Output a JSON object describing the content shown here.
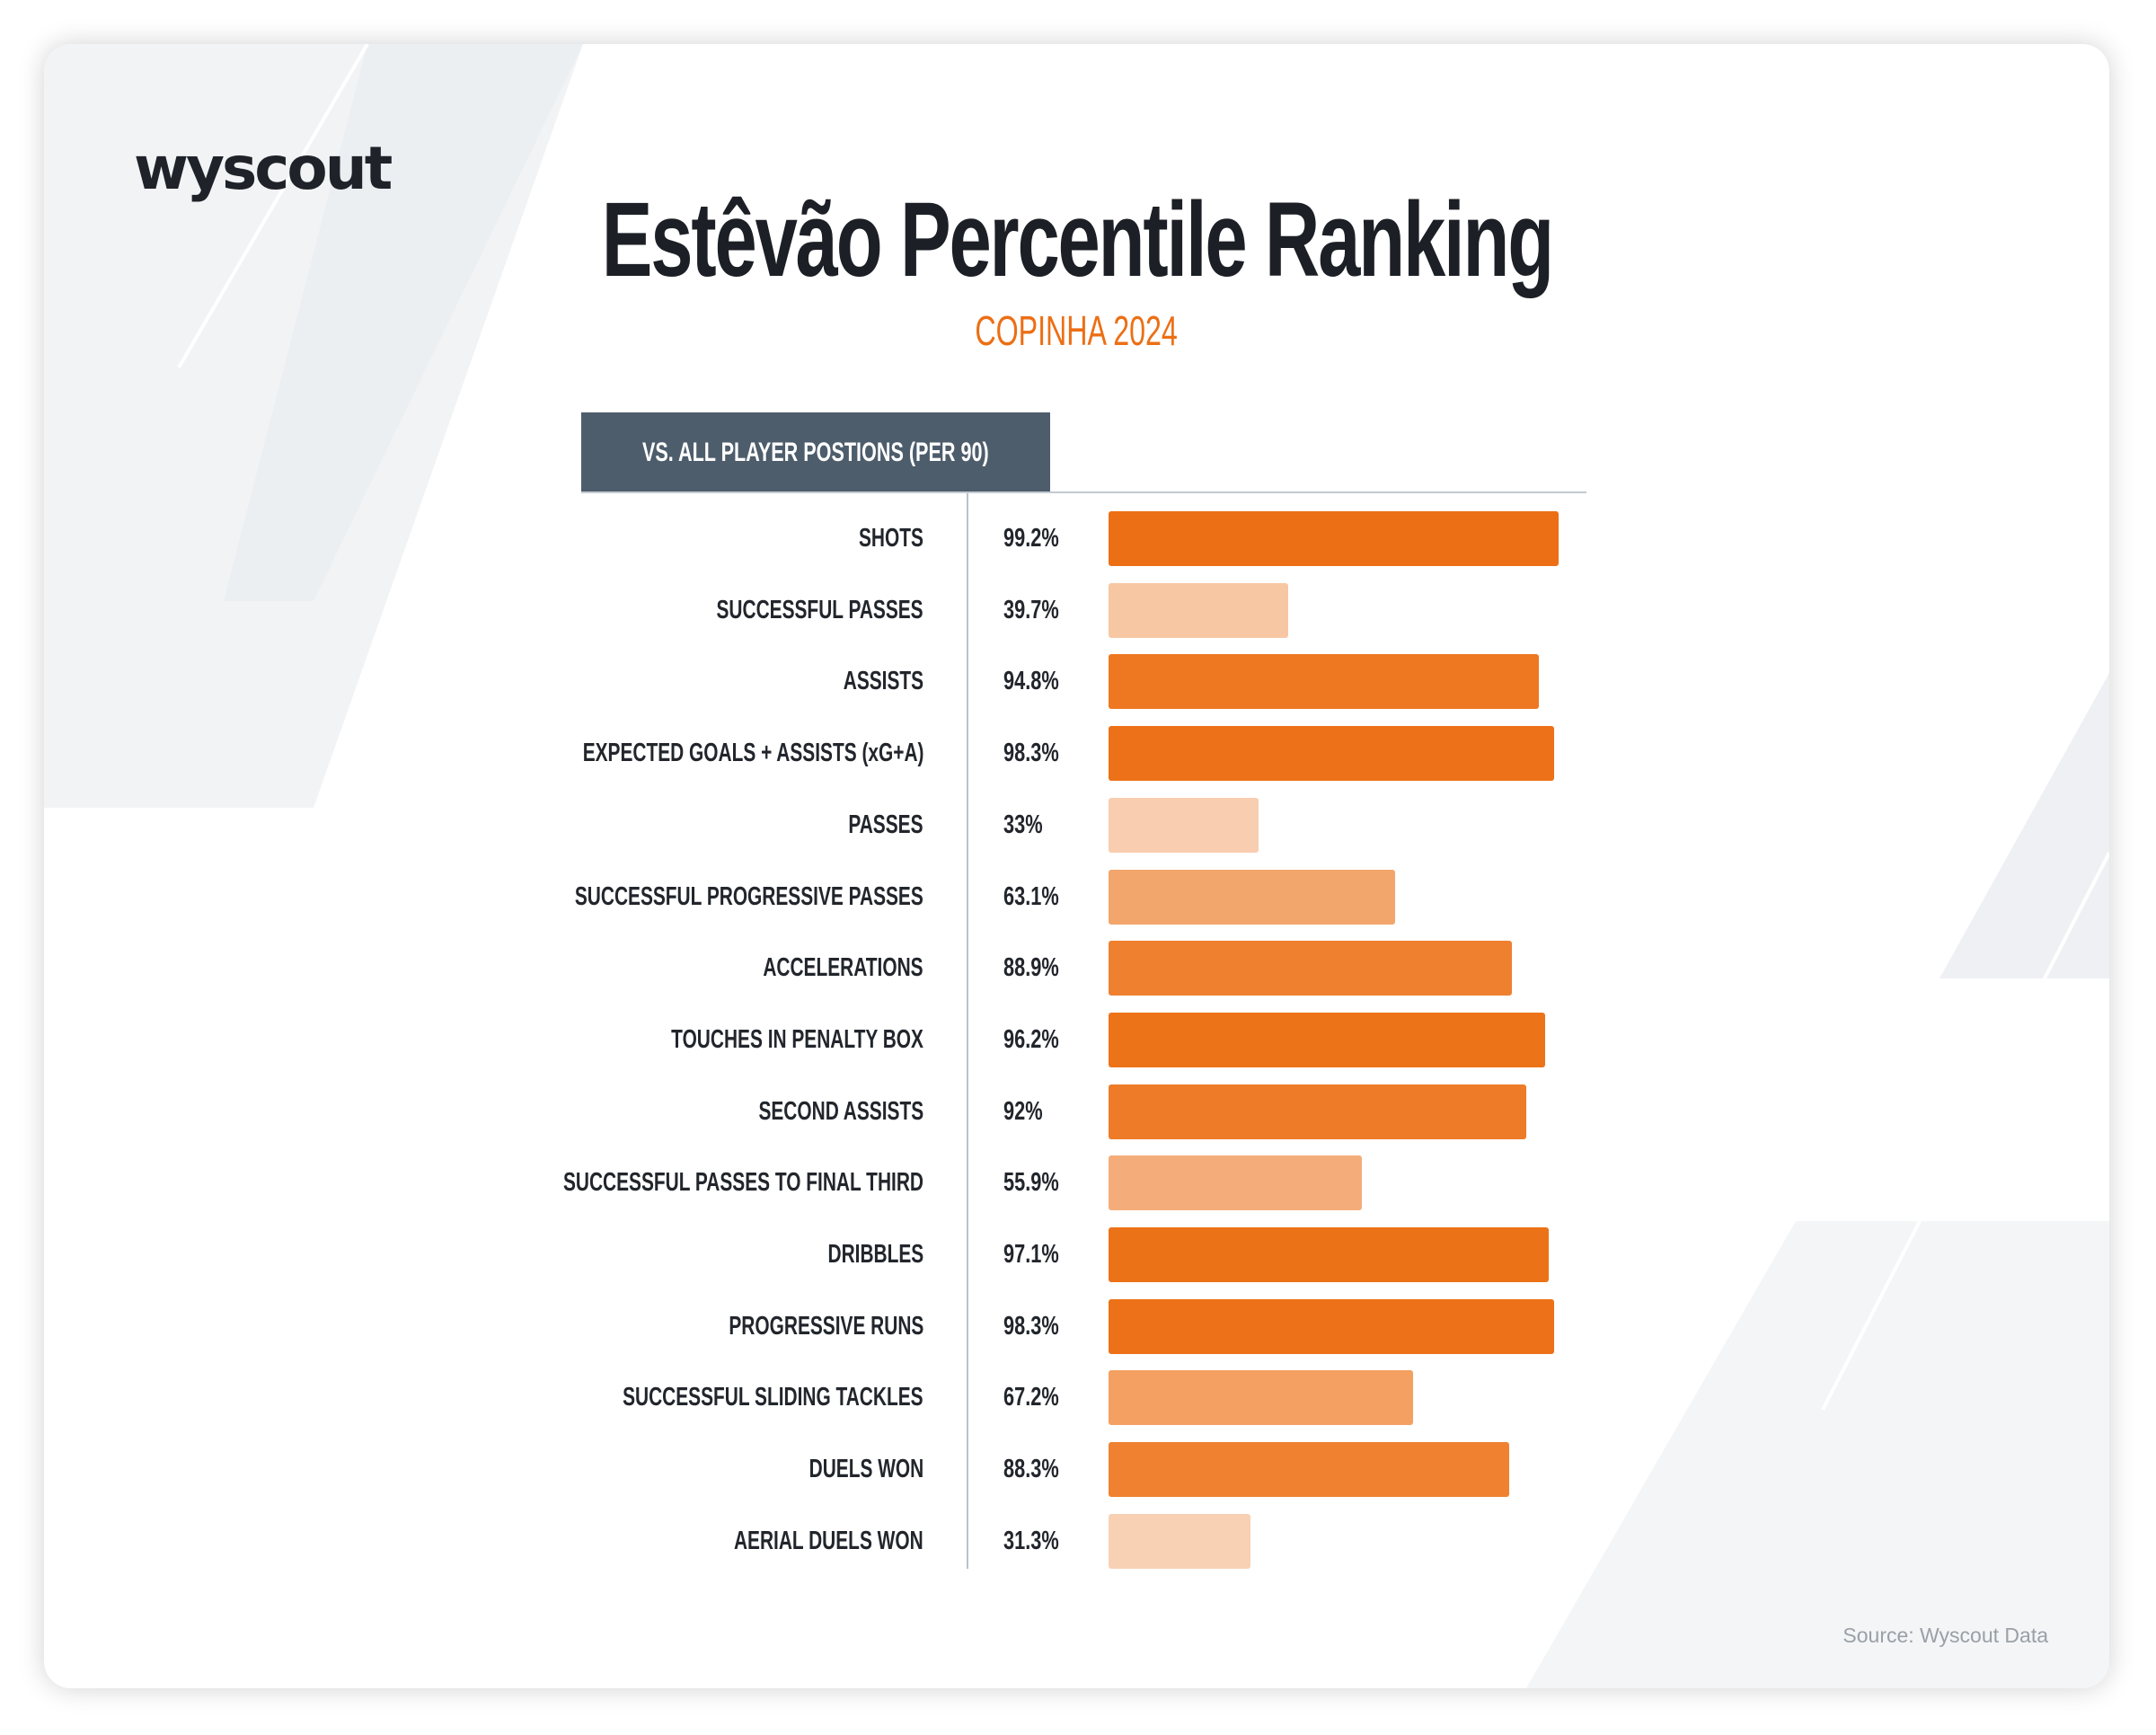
{
  "logo": "wyscout",
  "chart_data": {
    "type": "bar",
    "orientation": "horizontal",
    "title": "Estêvão Percentile Ranking",
    "subtitle": "COPINHA 2024",
    "header": "VS. ALL PLAYER POSTIONS (PER 90)",
    "xlim": [
      0,
      100
    ],
    "categories": [
      "SHOTS",
      "SUCCESSFUL PASSES",
      "ASSISTS",
      "EXPECTED GOALS + ASSISTS (xG+A)",
      "PASSES",
      "SUCCESSFUL PROGRESSIVE PASSES",
      "ACCELERATIONS",
      "TOUCHES IN PENALTY BOX",
      "SECOND ASSISTS",
      "SUCCESSFUL PASSES TO FINAL THIRD",
      "DRIBBLES",
      "PROGRESSIVE RUNS",
      "SUCCESSFUL SLIDING TACKLES",
      "DUELS WON",
      "AERIAL DUELS WON"
    ],
    "values": [
      99.2,
      39.7,
      94.8,
      98.3,
      33,
      63.1,
      88.9,
      96.2,
      92,
      55.9,
      97.1,
      98.3,
      67.2,
      88.3,
      31.3
    ],
    "value_labels": [
      "99.2%",
      "39.7%",
      "94.8%",
      "98.3%",
      "33%",
      "63.1%",
      "88.9%",
      "96.2%",
      "92%",
      "55.9%",
      "97.1%",
      "98.3%",
      "67.2%",
      "88.3%",
      "31.3%"
    ],
    "colors": [
      "#ec6f15",
      "#f7c7a4",
      "#ee7721",
      "#ec7118",
      "#f8cdb0",
      "#f3a66b",
      "#ef8030",
      "#ed7319",
      "#ee7b27",
      "#f4ad7a",
      "#ec7217",
      "#ec7118",
      "#f3a062",
      "#ef8131",
      "#f8d1b5"
    ]
  },
  "source": "Source: Wyscout Data"
}
